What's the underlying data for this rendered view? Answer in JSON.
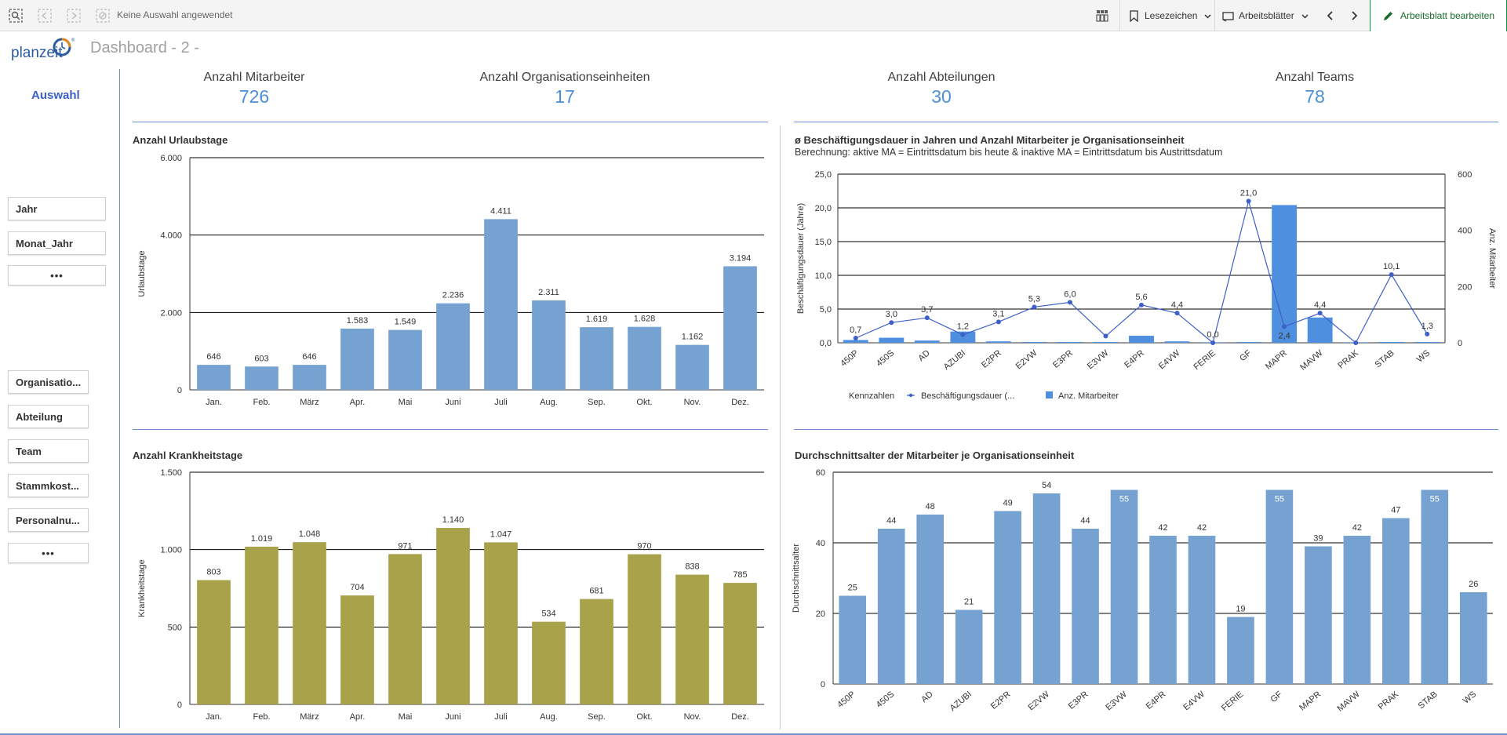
{
  "toolbar": {
    "selection_text": "Keine Auswahl angewendet",
    "bookmarks_label": "Lesezeichen",
    "sheets_label": "Arbeitsblätter",
    "edit_label": "Arbeitsblatt bearbeiten",
    "accent_color": "#009845"
  },
  "header": {
    "logo_text": "planzeit",
    "page_title": "Dashboard - 2 -"
  },
  "sidebar": {
    "heading": "Auswahl",
    "filters_top": [
      "Jahr",
      "Monat_Jahr"
    ],
    "filters_bottom": [
      "Organisatio...",
      "Abteilung",
      "Team",
      "Stammkost...",
      "Personalnu..."
    ],
    "more_label": "•••"
  },
  "kpis": [
    {
      "label": "Anzahl Mitarbeiter",
      "value": "726"
    },
    {
      "label": "Anzahl Organisationseinheiten",
      "value": "17"
    },
    {
      "label": "Anzahl Abteilungen",
      "value": "30"
    },
    {
      "label": "Anzahl Teams",
      "value": "78"
    }
  ],
  "chart_data": [
    {
      "type": "bar",
      "title": "Anzahl Urlaubstage",
      "ylabel": "Urlaubstage",
      "xlabel": "",
      "categories": [
        "Jan.",
        "Feb.",
        "März",
        "Apr.",
        "Mai",
        "Juni",
        "Juli",
        "Aug.",
        "Sep.",
        "Okt.",
        "Nov.",
        "Dez."
      ],
      "values": [
        646,
        603,
        646,
        1583,
        1549,
        2236,
        4411,
        2311,
        1619,
        1628,
        1162,
        3194
      ],
      "value_labels": [
        "646",
        "603",
        "646",
        "1.583",
        "1.549",
        "2.236",
        "4.411",
        "2.311",
        "1.619",
        "1.628",
        "1.162",
        "3.194"
      ],
      "yticks": [
        0,
        2000,
        4000,
        6000
      ],
      "ytick_labels": [
        "0",
        "2.000",
        "4.000",
        "6.000"
      ],
      "ylim": [
        0,
        6000
      ],
      "grid": true,
      "color": "#76a2d1"
    },
    {
      "type": "bar",
      "title": "Anzahl Krankheitstage",
      "ylabel": "Krankheitstage",
      "xlabel": "",
      "categories": [
        "Jan.",
        "Feb.",
        "März",
        "Apr.",
        "Mai",
        "Juni",
        "Juli",
        "Aug.",
        "Sep.",
        "Okt.",
        "Nov.",
        "Dez."
      ],
      "values": [
        803,
        1019,
        1048,
        704,
        971,
        1140,
        1047,
        534,
        681,
        970,
        838,
        785
      ],
      "value_labels": [
        "803",
        "1.019",
        "1.048",
        "704",
        "971",
        "1.140",
        "1.047",
        "534",
        "681",
        "970",
        "838",
        "785"
      ],
      "yticks": [
        0,
        500,
        1000,
        1500
      ],
      "ytick_labels": [
        "0",
        "500",
        "1.000",
        "1.500"
      ],
      "ylim": [
        0,
        1500
      ],
      "grid": true,
      "color": "#a8a24a"
    },
    {
      "type": "bar",
      "subtype": "combo-bar-line",
      "title": "ø Beschäftigungsdauer in Jahren und Anzahl Mitarbeiter je Organisationseinheit",
      "subtitle": "Berechnung: aktive MA = Eintrittsdatum bis heute & inaktive MA = Eintrittsdatum bis Austrittsdatum",
      "ylabel": "Beschäftigungsdauer (Jahre)",
      "y2label": "Anz. Mitarbeiter",
      "categories": [
        "450P",
        "450S",
        "AD",
        "AZUBI",
        "E2PR",
        "E2VW",
        "E3PR",
        "E3VW",
        "E4PR",
        "E4VW",
        "FERIE",
        "GF",
        "MAPR",
        "MAVW",
        "PRAK",
        "STAB",
        "WS"
      ],
      "series": [
        {
          "name": "Beschäftigungsdauer (...",
          "type": "line",
          "axis": "left",
          "values": [
            0.7,
            3.0,
            3.7,
            1.2,
            3.1,
            5.3,
            6.0,
            1.0,
            5.6,
            4.4,
            0.0,
            21.0,
            2.4,
            4.4,
            0.0,
            10.1,
            1.3
          ],
          "value_labels": [
            "0,7",
            "3,0",
            "3,7",
            "1,2",
            "3,1",
            "5,3",
            "6,0",
            "",
            "5,6",
            "4,4",
            "0,0",
            "21,0",
            "2,4",
            "4,4",
            "",
            "10,1",
            "1,3"
          ],
          "color": "#3c5fc9"
        },
        {
          "name": "Anz. Mitarbeiter",
          "type": "bar",
          "axis": "right",
          "values": [
            10,
            18,
            8,
            40,
            5,
            3,
            3,
            3,
            25,
            5,
            2,
            3,
            490,
            90,
            2,
            3,
            3
          ],
          "color": "#4f8fe0"
        }
      ],
      "yticks": [
        0,
        5,
        10,
        15,
        20,
        25
      ],
      "ytick_labels": [
        "0,0",
        "5,0",
        "10,0",
        "15,0",
        "20,0",
        "25,0"
      ],
      "ylim": [
        0,
        25
      ],
      "y2ticks": [
        0,
        200,
        400,
        600
      ],
      "y2tick_labels": [
        "0",
        "200",
        "400",
        "600"
      ],
      "y2lim": [
        0,
        600
      ],
      "legend_title": "Kennzahlen",
      "legend": "bottom-left",
      "grid": true
    },
    {
      "type": "bar",
      "title": "Durchschnittsalter der Mitarbeiter je Organisationseinheit",
      "ylabel": "Durchschnittsalter",
      "xlabel": "",
      "categories": [
        "450P",
        "450S",
        "AD",
        "AZUBI",
        "E2PR",
        "E2VW",
        "E3PR",
        "E3VW",
        "E4PR",
        "E4VW",
        "FERIE",
        "GF",
        "MAPR",
        "MAVW",
        "PRAK",
        "STAB",
        "WS"
      ],
      "values": [
        25,
        44,
        48,
        21,
        49,
        54,
        44,
        55,
        42,
        42,
        19,
        55,
        39,
        42,
        47,
        55,
        26
      ],
      "value_labels": [
        "25",
        "44",
        "48",
        "21",
        "49",
        "54",
        "44",
        "55",
        "42",
        "42",
        "19",
        "55",
        "39",
        "42",
        "47",
        "55",
        "26"
      ],
      "yticks": [
        0,
        20,
        40,
        60
      ],
      "ytick_labels": [
        "0",
        "20",
        "40",
        "60"
      ],
      "ylim": [
        0,
        60
      ],
      "grid": true,
      "color": "#76a2d1"
    }
  ]
}
